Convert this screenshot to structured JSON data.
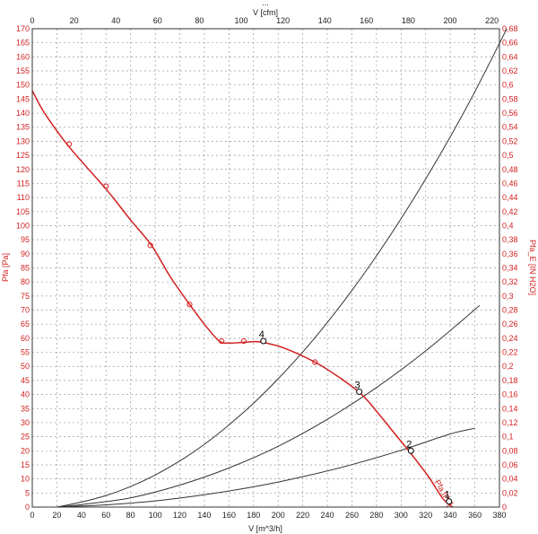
{
  "chart_data": {
    "type": "line",
    "header_text": "...",
    "x_bottom": {
      "label": "V [m^3/h]",
      "range": [
        0,
        380
      ],
      "ticks": [
        0,
        20,
        40,
        60,
        80,
        100,
        120,
        140,
        160,
        180,
        200,
        220,
        240,
        260,
        280,
        300,
        320,
        340,
        360,
        380
      ]
    },
    "x_top": {
      "label": "V [cfm]",
      "range": [
        0,
        223.6
      ],
      "ticks": [
        0,
        20,
        40,
        60,
        80,
        100,
        120,
        140,
        160,
        180,
        200,
        220
      ]
    },
    "y_left": {
      "label": "Pfa [Pa]",
      "range": [
        0,
        170
      ],
      "ticks": [
        0,
        5,
        10,
        15,
        20,
        25,
        30,
        35,
        40,
        45,
        50,
        55,
        60,
        65,
        70,
        75,
        80,
        85,
        90,
        95,
        100,
        105,
        110,
        115,
        120,
        125,
        130,
        135,
        140,
        145,
        150,
        155,
        160,
        165,
        170
      ]
    },
    "y_right": {
      "label": "Pfa_E [IN H2O]",
      "range": [
        0,
        0.683
      ],
      "ticks": [
        "0",
        "0,02",
        "0,04",
        "0,06",
        "0,08",
        "0,1",
        "0,12",
        "0,14",
        "0,16",
        "0,18",
        "0,2",
        "0,22",
        "0,24",
        "0,26",
        "0,28",
        "0,3",
        "0,32",
        "0,34",
        "0,36",
        "0,38",
        "0,4",
        "0,42",
        "0,44",
        "0,46",
        "0,48",
        "0,5",
        "0,52",
        "0,54",
        "0,56",
        "0,58",
        "0,6",
        "0,62",
        "0,64",
        "0,66",
        "0,68"
      ]
    },
    "grid": true,
    "series": [
      {
        "name": "Pfa [Pa]",
        "color": "#d22020",
        "curve": [
          [
            0,
            148
          ],
          [
            10,
            140
          ],
          [
            30,
            128
          ],
          [
            60,
            113
          ],
          [
            80,
            102
          ],
          [
            97,
            93
          ],
          [
            112,
            82
          ],
          [
            128,
            72
          ],
          [
            140,
            65
          ],
          [
            152,
            59
          ],
          [
            160,
            58.3
          ],
          [
            170,
            58.5
          ],
          [
            182,
            58.8
          ],
          [
            190,
            58.3
          ],
          [
            205,
            56.5
          ],
          [
            230,
            51.5
          ],
          [
            250,
            46
          ],
          [
            268,
            40
          ],
          [
            282,
            33
          ],
          [
            295,
            26
          ],
          [
            308,
            19
          ],
          [
            322,
            11
          ],
          [
            334,
            3
          ],
          [
            342,
            0
          ]
        ],
        "markers": [
          [
            30,
            129
          ],
          [
            60,
            114
          ],
          [
            96,
            93
          ],
          [
            128,
            72
          ],
          [
            154,
            59
          ],
          [
            172,
            59
          ],
          [
            230,
            51.5
          ],
          [
            266,
            41
          ]
        ]
      },
      {
        "name": "",
        "color": "#333333",
        "curve": [
          [
            20,
            0
          ],
          [
            40,
            1.8
          ],
          [
            60,
            4.1
          ],
          [
            80,
            7.3
          ],
          [
            100,
            11.4
          ],
          [
            120,
            16.4
          ],
          [
            140,
            22.3
          ],
          [
            160,
            29.2
          ],
          [
            180,
            36.9
          ],
          [
            200,
            45.6
          ],
          [
            220,
            55.1
          ],
          [
            240,
            65.6
          ],
          [
            260,
            77
          ],
          [
            280,
            89.3
          ],
          [
            300,
            102.5
          ],
          [
            320,
            116.6
          ],
          [
            340,
            131.6
          ],
          [
            360,
            147.6
          ],
          [
            386,
            170
          ]
        ]
      },
      {
        "name": "",
        "color": "#333333",
        "curve": [
          [
            20,
            0
          ],
          [
            40,
            0.9
          ],
          [
            80,
            3.3
          ],
          [
            120,
            7.8
          ],
          [
            160,
            13.9
          ],
          [
            200,
            21.6
          ],
          [
            240,
            31.2
          ],
          [
            280,
            42.5
          ],
          [
            320,
            55.5
          ],
          [
            360,
            70.2
          ],
          [
            362,
            71
          ]
        ]
      },
      {
        "name": "",
        "color": "#333333",
        "curve": [
          [
            20,
            0
          ],
          [
            60,
            0.8
          ],
          [
            100,
            2.2
          ],
          [
            140,
            4.4
          ],
          [
            180,
            7.2
          ],
          [
            220,
            10.8
          ],
          [
            260,
            15.1
          ],
          [
            300,
            20.2
          ],
          [
            340,
            26
          ],
          [
            360,
            28
          ]
        ]
      }
    ],
    "operating_points": [
      {
        "label": "4",
        "x": 188,
        "y": 59
      },
      {
        "label": "3",
        "x": 266,
        "y": 41
      },
      {
        "label": "2",
        "x": 308,
        "y": 20
      },
      {
        "label": "1",
        "x": 339,
        "y": 2
      }
    ],
    "curve_annotation": "Pfa [Pa]"
  }
}
